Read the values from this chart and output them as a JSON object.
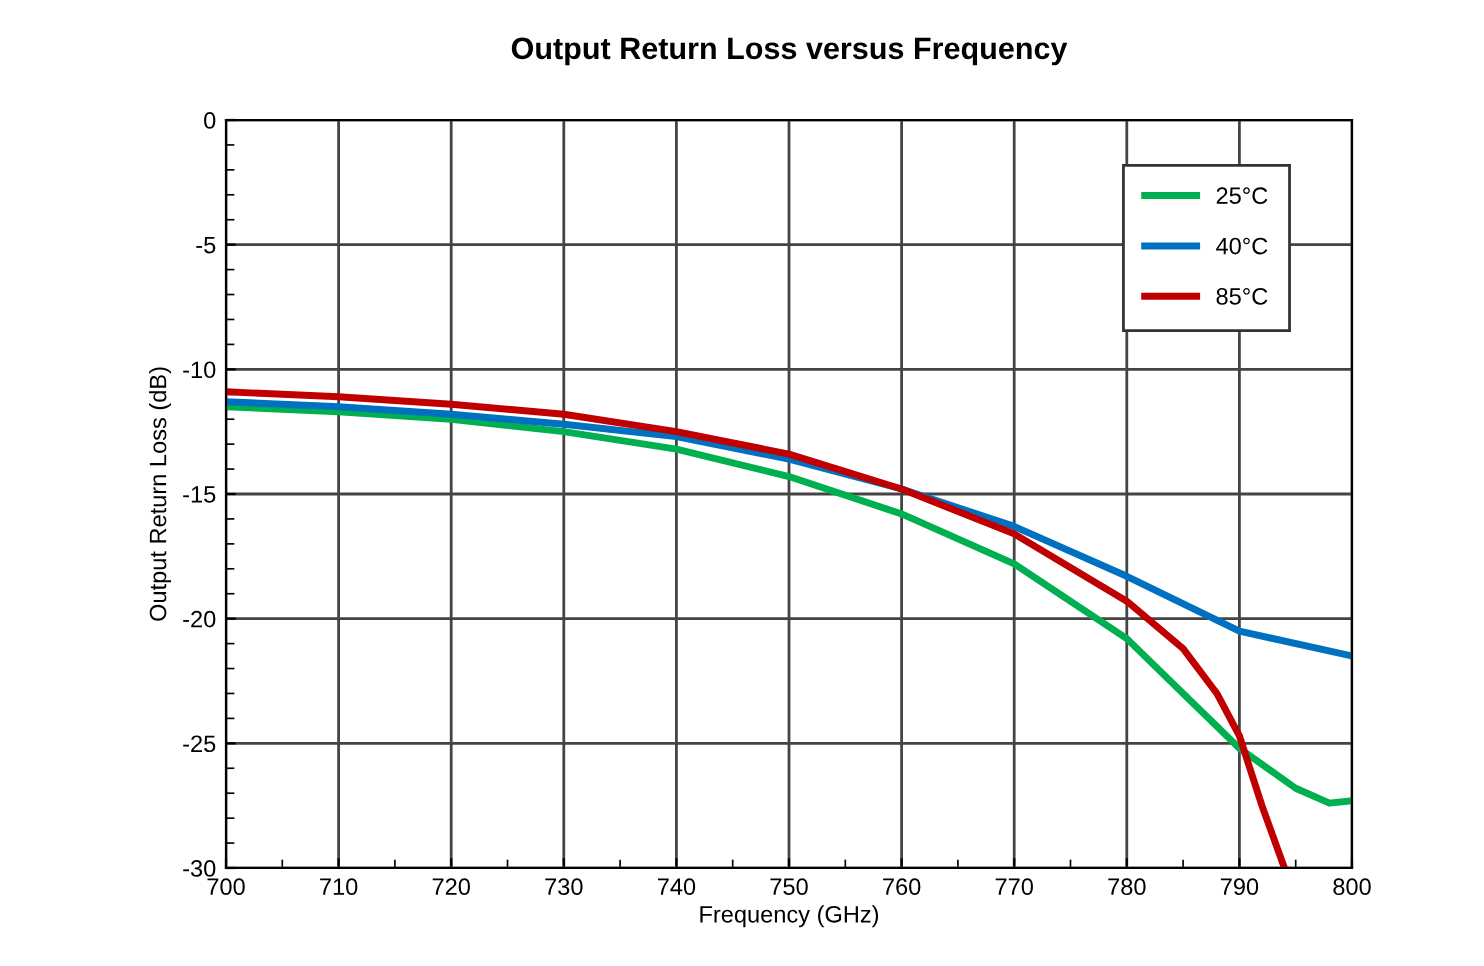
{
  "chart_data": {
    "type": "line",
    "title": "Output Return Loss versus Frequency",
    "xlabel": "Frequency (GHz)",
    "ylabel": "Output Return Loss (dB)",
    "xlim": [
      700,
      800
    ],
    "xticks": [
      700,
      710,
      720,
      730,
      740,
      750,
      760,
      770,
      780,
      790,
      800
    ],
    "ylim": [
      -30,
      0
    ],
    "yticks": [
      -30,
      -25,
      -20,
      -15,
      -10,
      -5,
      0
    ],
    "grid": true,
    "legend": "top right",
    "marker": "none",
    "line_style": "solid",
    "series": [
      {
        "name": "25°C",
        "color": "#00b050",
        "x": [
          700,
          710,
          720,
          730,
          740,
          750,
          760,
          770,
          780,
          785,
          790,
          795,
          798,
          800
        ],
        "values": [
          -11.5,
          -11.7,
          -12.0,
          -12.5,
          -13.2,
          -14.3,
          -15.8,
          -17.8,
          -20.8,
          -23.0,
          -25.2,
          -26.8,
          -27.4,
          -27.3
        ]
      },
      {
        "name": "40°C",
        "color": "#0070c0",
        "x": [
          700,
          710,
          720,
          730,
          740,
          750,
          760,
          770,
          780,
          790,
          800
        ],
        "values": [
          -11.3,
          -11.5,
          -11.8,
          -12.2,
          -12.7,
          -13.6,
          -14.8,
          -16.3,
          -18.3,
          -20.5,
          -21.5
        ]
      },
      {
        "name": "85°C",
        "color": "#c00000",
        "x": [
          700,
          710,
          720,
          730,
          740,
          750,
          760,
          770,
          780,
          785,
          788,
          790,
          792,
          794
        ],
        "values": [
          -10.9,
          -11.1,
          -11.4,
          -11.8,
          -12.5,
          -13.4,
          -14.8,
          -16.6,
          -19.3,
          -21.2,
          -23.0,
          -24.7,
          -27.5,
          -30.0
        ]
      }
    ]
  }
}
